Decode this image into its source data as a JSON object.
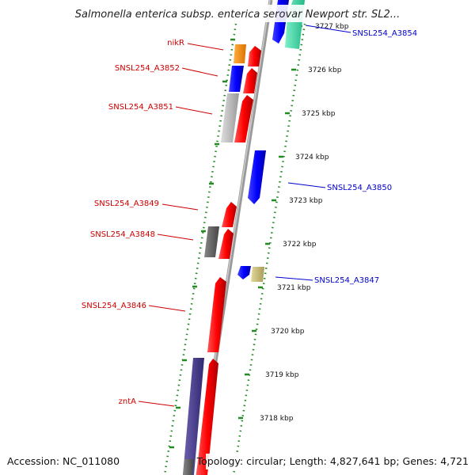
{
  "header": {
    "title": "Salmonella enterica subsp. enterica serovar Newport str. SL2..."
  },
  "footer": {
    "accession": "Accession: NC_011080",
    "topology": "Topology: circular; Length: 4,827,641 bp; Genes: 4,721"
  },
  "kbp_labels": [
    "3727 kbp",
    "3726 kbp",
    "3725 kbp",
    "3724 kbp",
    "3723 kbp",
    "3722 kbp",
    "3721 kbp",
    "3720 kbp",
    "3719 kbp",
    "3718 kbp"
  ],
  "gene_labels_left": [
    "nikR",
    "SNSL254_A3852",
    "SNSL254_A3851",
    "SNSL254_A3849",
    "SNSL254_A3848",
    "SNSL254_A3846",
    "zntA"
  ],
  "gene_labels_right": [
    "SNSL254_A3854",
    "SNSL254_A3850",
    "SNSL254_A3847"
  ],
  "colors": {
    "forward_strand": "#ff0000",
    "reverse_strand": "#0000ff",
    "label_forward": "#cc0000",
    "label_reverse": "#0000cc",
    "backbone": "#999999",
    "tick": "#228b22",
    "orange_gene": "#ff8c00",
    "cyan_gene": "#3cd6a8",
    "khaki_gene": "#c8bc78",
    "grey_gene": "#bbbbbb",
    "darkgrey_gene": "#666666",
    "slate_gene": "#4a3f8c"
  }
}
